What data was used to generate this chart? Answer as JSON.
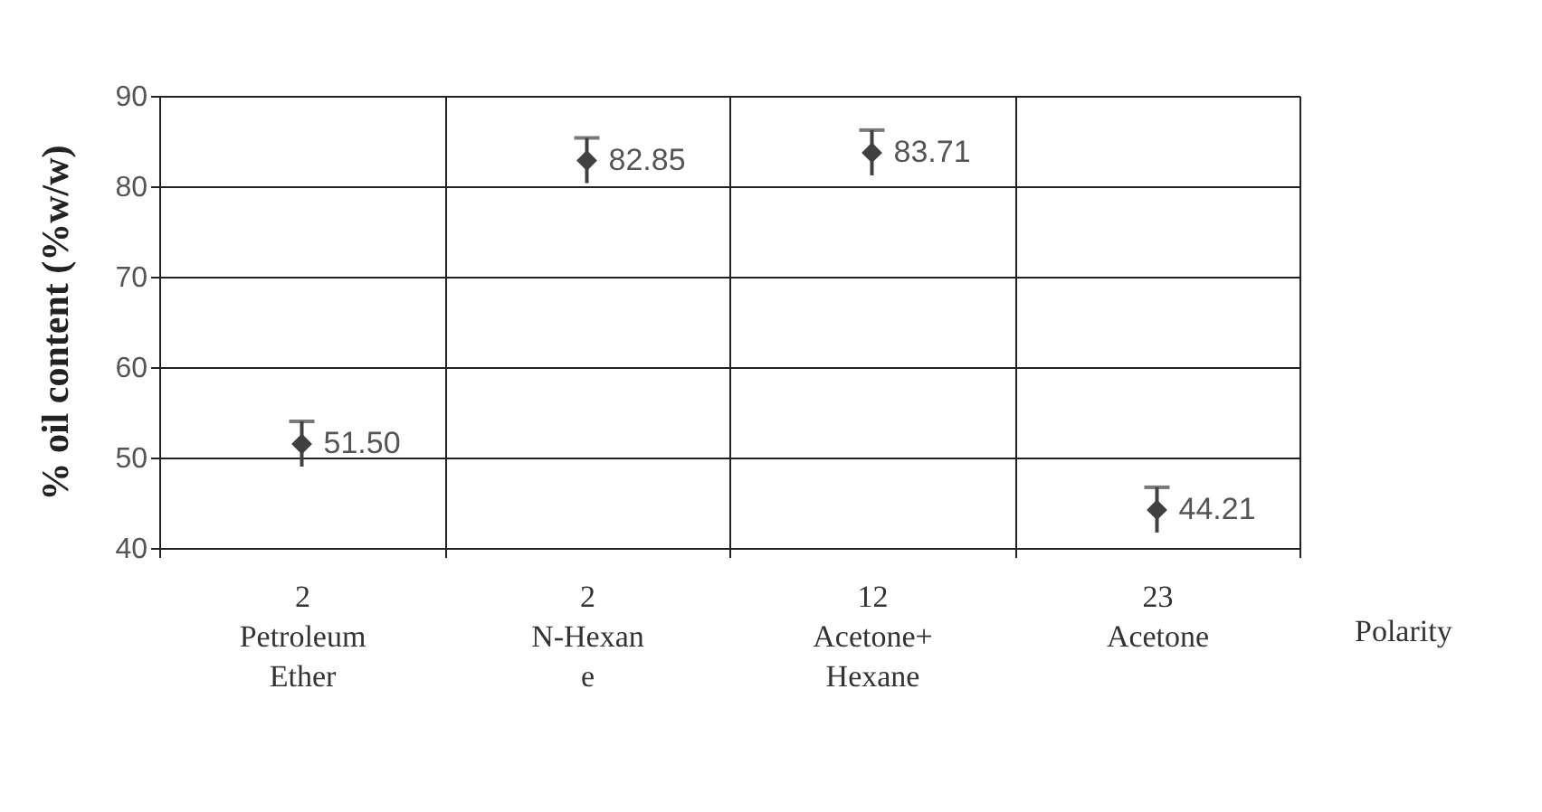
{
  "chart_data": {
    "type": "scatter",
    "categories": [
      "2\nPetroleum\nEther",
      "2\nN-Hexan\ne",
      "12\nAcetone+\nHexane",
      "23\nAcetone"
    ],
    "series": [
      {
        "color": "#404040",
        "values": [
          51.5,
          82.85,
          83.71,
          44.21
        ],
        "errors": [
          2.5,
          2.5,
          2.5,
          2.5
        ],
        "value_labels": [
          "51.50",
          "82.85",
          "83.71",
          "44.21"
        ]
      }
    ],
    "ylabel": "% oil content (%w/w)",
    "xlabel": "Polarity",
    "ylim": [
      40,
      90
    ],
    "yticks": [
      40,
      50,
      60,
      70,
      80,
      90
    ],
    "grid": true,
    "marker": "diamond"
  }
}
